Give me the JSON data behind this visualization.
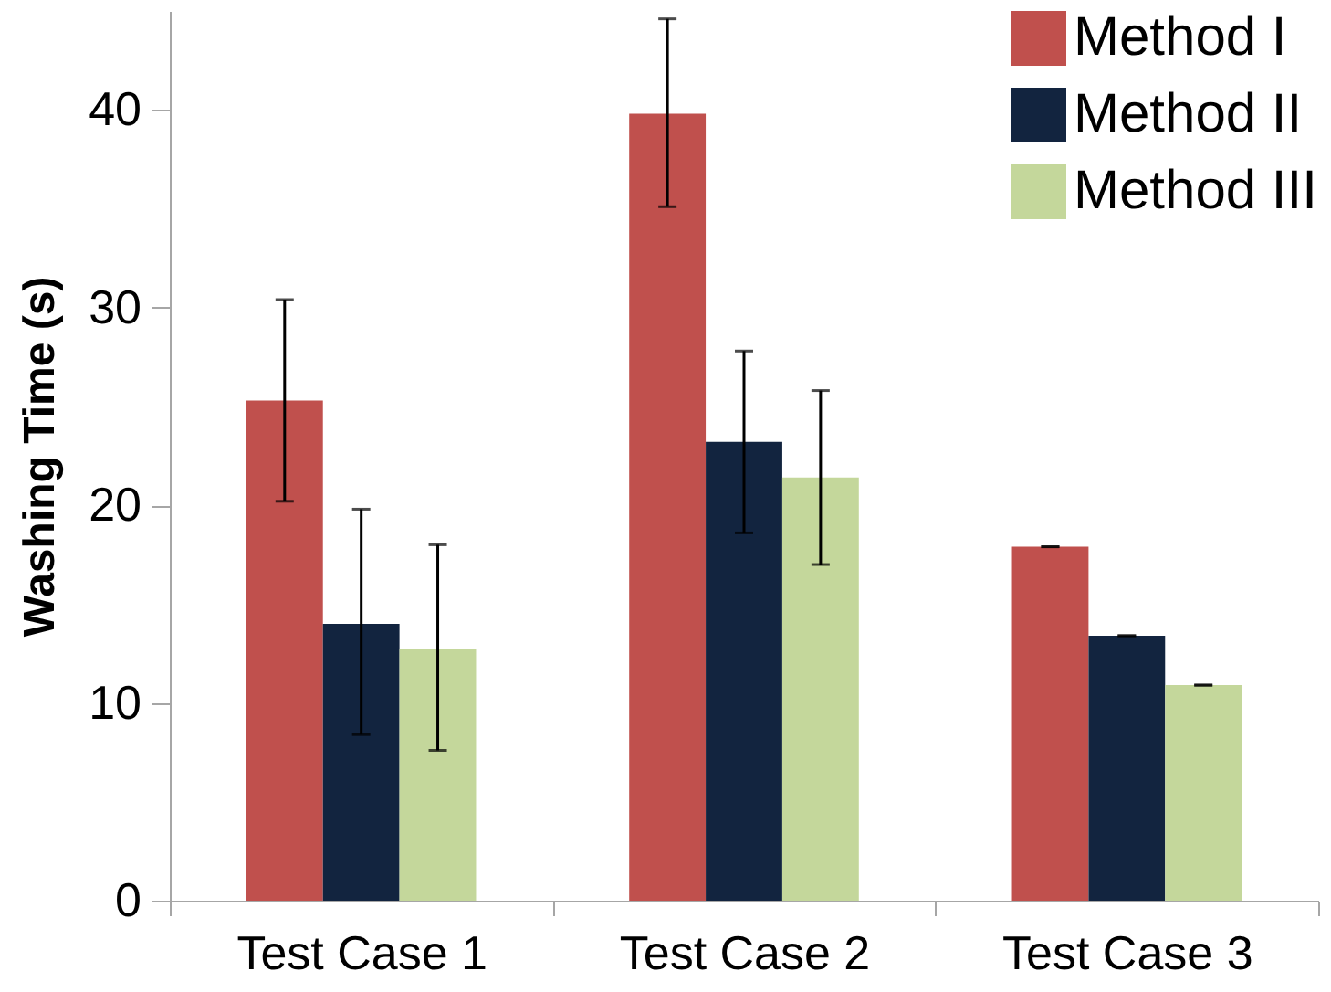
{
  "chart_data": {
    "type": "bar",
    "ylabel": "Washing Time (s)",
    "categories": [
      "Test Case 1",
      "Test Case 2",
      "Test Case 3"
    ],
    "series": [
      {
        "name": "Method I",
        "color": "#c0504d",
        "values": [
          25.3,
          39.8,
          17.9
        ],
        "errors": [
          [
            20.2,
            30.4
          ],
          [
            35.1,
            44.6
          ],
          [
            17.9,
            17.9
          ]
        ]
      },
      {
        "name": "Method II",
        "color": "#12243f",
        "values": [
          14.0,
          23.2,
          13.4
        ],
        "errors": [
          [
            8.4,
            19.8
          ],
          [
            18.6,
            27.8
          ],
          [
            13.4,
            13.4
          ]
        ]
      },
      {
        "name": "Method III",
        "color": "#c4d79b",
        "values": [
          12.7,
          21.4,
          10.9
        ],
        "errors": [
          [
            7.6,
            18.0
          ],
          [
            17.0,
            25.8
          ],
          [
            10.9,
            10.9
          ]
        ]
      }
    ],
    "ylim": [
      0,
      45
    ],
    "yticks": [
      0,
      10,
      20,
      30,
      40
    ],
    "grid": false,
    "legend": "top right"
  }
}
